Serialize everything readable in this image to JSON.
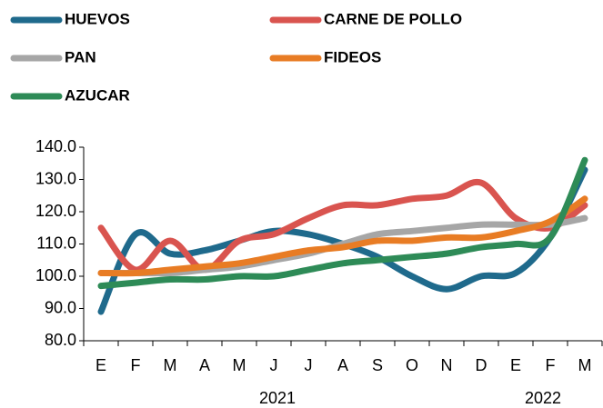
{
  "chart_data": {
    "type": "line",
    "categories": [
      "E",
      "F",
      "M",
      "A",
      "M",
      "J",
      "J",
      "A",
      "S",
      "O",
      "N",
      "D",
      "E",
      "F",
      "M"
    ],
    "year_labels": [
      "2021",
      "2022"
    ],
    "series": [
      {
        "name": "HUEVOS",
        "color": "#1f6a8c",
        "values": [
          89,
          113,
          107,
          108,
          111,
          114,
          113,
          110,
          106,
          100,
          96,
          100,
          101,
          112,
          133
        ]
      },
      {
        "name": "CARNE DE POLLO",
        "color": "#d9544f",
        "values": [
          115,
          102,
          111,
          102,
          111,
          113,
          118,
          122,
          122,
          124,
          125,
          129,
          118,
          115,
          122
        ]
      },
      {
        "name": "PAN",
        "color": "#a6a6a6",
        "values": [
          101,
          101,
          101,
          102,
          103,
          105,
          107,
          110,
          113,
          114,
          115,
          116,
          116,
          116,
          118
        ]
      },
      {
        "name": "FIDEOS",
        "color": "#e87c24",
        "values": [
          101,
          101,
          102,
          103,
          104,
          106,
          108,
          109,
          111,
          111,
          112,
          112,
          114,
          117,
          124
        ]
      },
      {
        "name": "AZUCAR",
        "color": "#2e8b57",
        "values": [
          97,
          98,
          99,
          99,
          100,
          100,
          102,
          104,
          105,
          106,
          107,
          109,
          110,
          112,
          136
        ]
      }
    ],
    "ylim": [
      80,
      140
    ],
    "yticks": [
      {
        "value": 80,
        "label": "80.0"
      },
      {
        "value": 90,
        "label": "90.0"
      },
      {
        "value": 100,
        "label": "100.0"
      },
      {
        "value": 110,
        "label": "110.0"
      },
      {
        "value": 120,
        "label": "120.0"
      },
      {
        "value": 130,
        "label": "130.0"
      },
      {
        "value": 140,
        "label": "140.0"
      }
    ],
    "grid": false,
    "legend": "top"
  }
}
